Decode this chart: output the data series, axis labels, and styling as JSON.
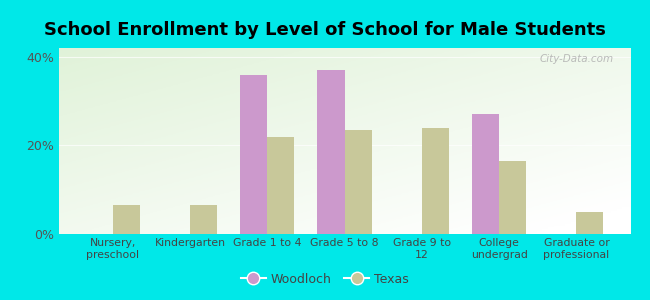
{
  "title": "School Enrollment by Level of School for Male Students",
  "categories": [
    "Nursery,\npreschool",
    "Kindergarten",
    "Grade 1 to 4",
    "Grade 5 to 8",
    "Grade 9 to\n12",
    "College\nundergrad",
    "Graduate or\nprofessional"
  ],
  "woodloch": [
    0,
    0,
    36.0,
    37.0,
    0,
    27.0,
    0
  ],
  "texas": [
    6.5,
    6.5,
    22.0,
    23.5,
    24.0,
    16.5,
    5.0
  ],
  "woodloch_color": "#cc99cc",
  "texas_color": "#c8c89a",
  "background_outer": "#00e8e8",
  "ylim": [
    0,
    42
  ],
  "yticks": [
    0,
    20,
    40
  ],
  "ytick_labels": [
    "0%",
    "20%",
    "40%"
  ],
  "title_fontsize": 13,
  "legend_labels": [
    "Woodloch",
    "Texas"
  ],
  "bar_width": 0.35,
  "watermark": "City-Data.com"
}
